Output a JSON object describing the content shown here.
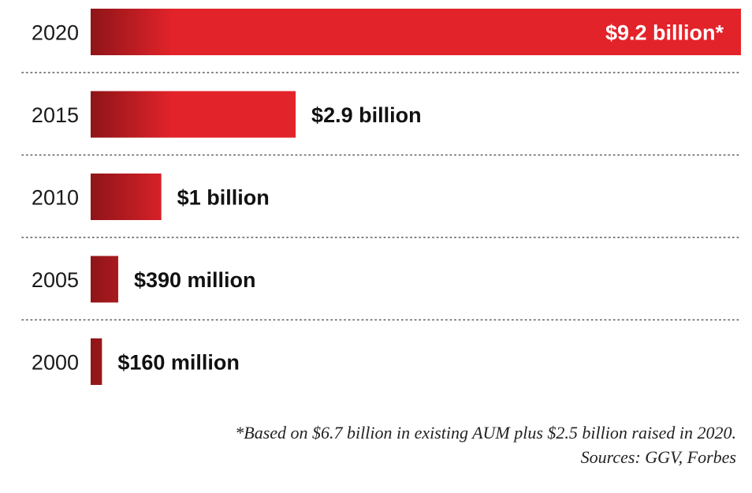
{
  "chart_data": {
    "type": "bar",
    "orientation": "horizontal",
    "categories": [
      "2020",
      "2015",
      "2010",
      "2005",
      "2000"
    ],
    "values": [
      9.2,
      2.9,
      1.0,
      0.39,
      0.16
    ],
    "unit": "billion USD",
    "data_labels": [
      "$9.2 billion*",
      "$2.9 billion",
      "$1 billion",
      "$390 million",
      "$160 million"
    ],
    "xlim": [
      0,
      9.2
    ],
    "grid": false,
    "legend": "none",
    "colors": {
      "bar": "#e3232a",
      "bar_dark": "#8e1518",
      "divider": "#555555"
    }
  },
  "footnote": {
    "line1": "*Based on $6.7 billion in existing AUM plus $2.5 billion raised in 2020.",
    "line2": "Sources: GGV, Forbes"
  }
}
